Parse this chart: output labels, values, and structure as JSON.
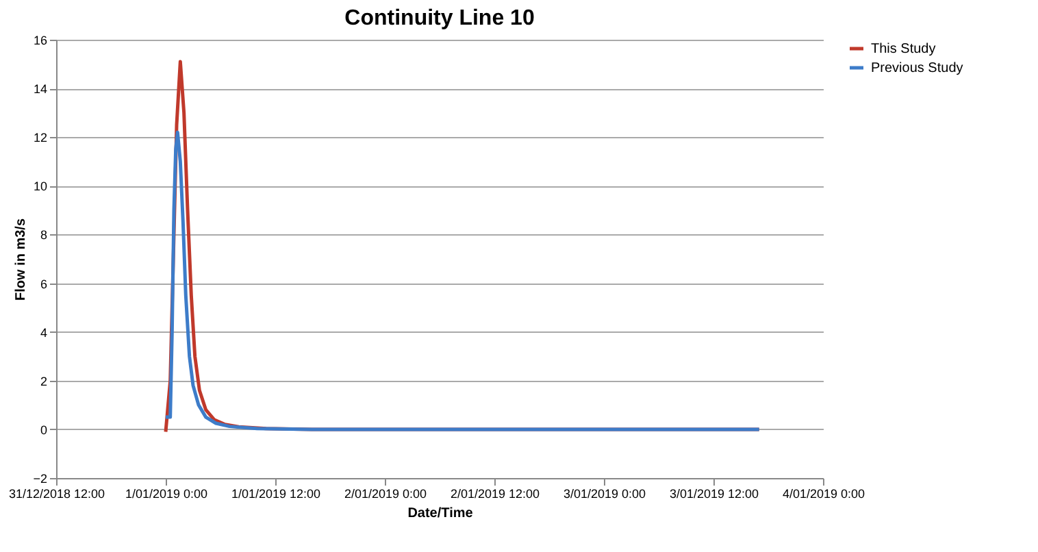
{
  "chart_data": {
    "type": "line",
    "title": "Continuity Line 10",
    "xlabel": "Date/Time",
    "ylabel": "Flow in m3/s",
    "xlim": [
      "2018-12-31T12:00",
      "2019-01-04T00:00"
    ],
    "xticks": [
      {
        "value": "2018-12-31T12:00",
        "label": "31/12/2018 12:00"
      },
      {
        "value": "2019-01-01T00:00",
        "label": "1/01/2019 0:00"
      },
      {
        "value": "2019-01-01T12:00",
        "label": "1/01/2019 12:00"
      },
      {
        "value": "2019-01-02T00:00",
        "label": "2/01/2019 0:00"
      },
      {
        "value": "2019-01-02T12:00",
        "label": "2/01/2019 12:00"
      },
      {
        "value": "2019-01-03T00:00",
        "label": "3/01/2019 0:00"
      },
      {
        "value": "2019-01-03T12:00",
        "label": "3/01/2019 12:00"
      },
      {
        "value": "2019-01-04T00:00",
        "label": "4/01/2019 0:00"
      }
    ],
    "ylim": [
      -2,
      16
    ],
    "yticks": [
      -2,
      0,
      2,
      4,
      6,
      8,
      10,
      12,
      14,
      16
    ],
    "grid": "y",
    "legend": "right",
    "line_style": "solid",
    "marker": "none",
    "series": [
      {
        "name": "This Study",
        "color": "#c0392b",
        "x": [
          "2019-01-01T00:00",
          "2019-01-01T00:30",
          "2019-01-01T00:54",
          "2019-01-01T01:12",
          "2019-01-01T01:36",
          "2019-01-01T02:00",
          "2019-01-01T02:24",
          "2019-01-01T02:48",
          "2019-01-01T03:12",
          "2019-01-01T03:42",
          "2019-01-01T04:24",
          "2019-01-01T05:18",
          "2019-01-01T06:30",
          "2019-01-01T08:00",
          "2019-01-01T11:00",
          "2019-01-01T16:00",
          "2019-01-03T17:00"
        ],
        "values": [
          -0.1,
          2,
          8,
          12.5,
          15.1,
          13,
          9,
          5.5,
          3,
          1.6,
          0.8,
          0.4,
          0.2,
          0.1,
          0.03,
          0,
          0
        ]
      },
      {
        "name": "Previous Study",
        "color": "#3d7cc9",
        "x": [
          "2019-01-01T00:00",
          "2019-01-01T00:30",
          "2019-01-01T00:42",
          "2019-01-01T00:54",
          "2019-01-01T01:06",
          "2019-01-01T01:18",
          "2019-01-01T01:36",
          "2019-01-01T01:54",
          "2019-01-01T02:12",
          "2019-01-01T02:36",
          "2019-01-01T03:00",
          "2019-01-01T03:36",
          "2019-01-01T04:24",
          "2019-01-01T05:30",
          "2019-01-01T07:00",
          "2019-01-01T10:00",
          "2019-01-01T16:00",
          "2019-01-03T17:00"
        ],
        "values": [
          0.5,
          0.5,
          4,
          9,
          11.5,
          12.2,
          11,
          8.5,
          5.5,
          3,
          1.8,
          1.0,
          0.5,
          0.25,
          0.12,
          0.03,
          0,
          0
        ]
      }
    ]
  }
}
